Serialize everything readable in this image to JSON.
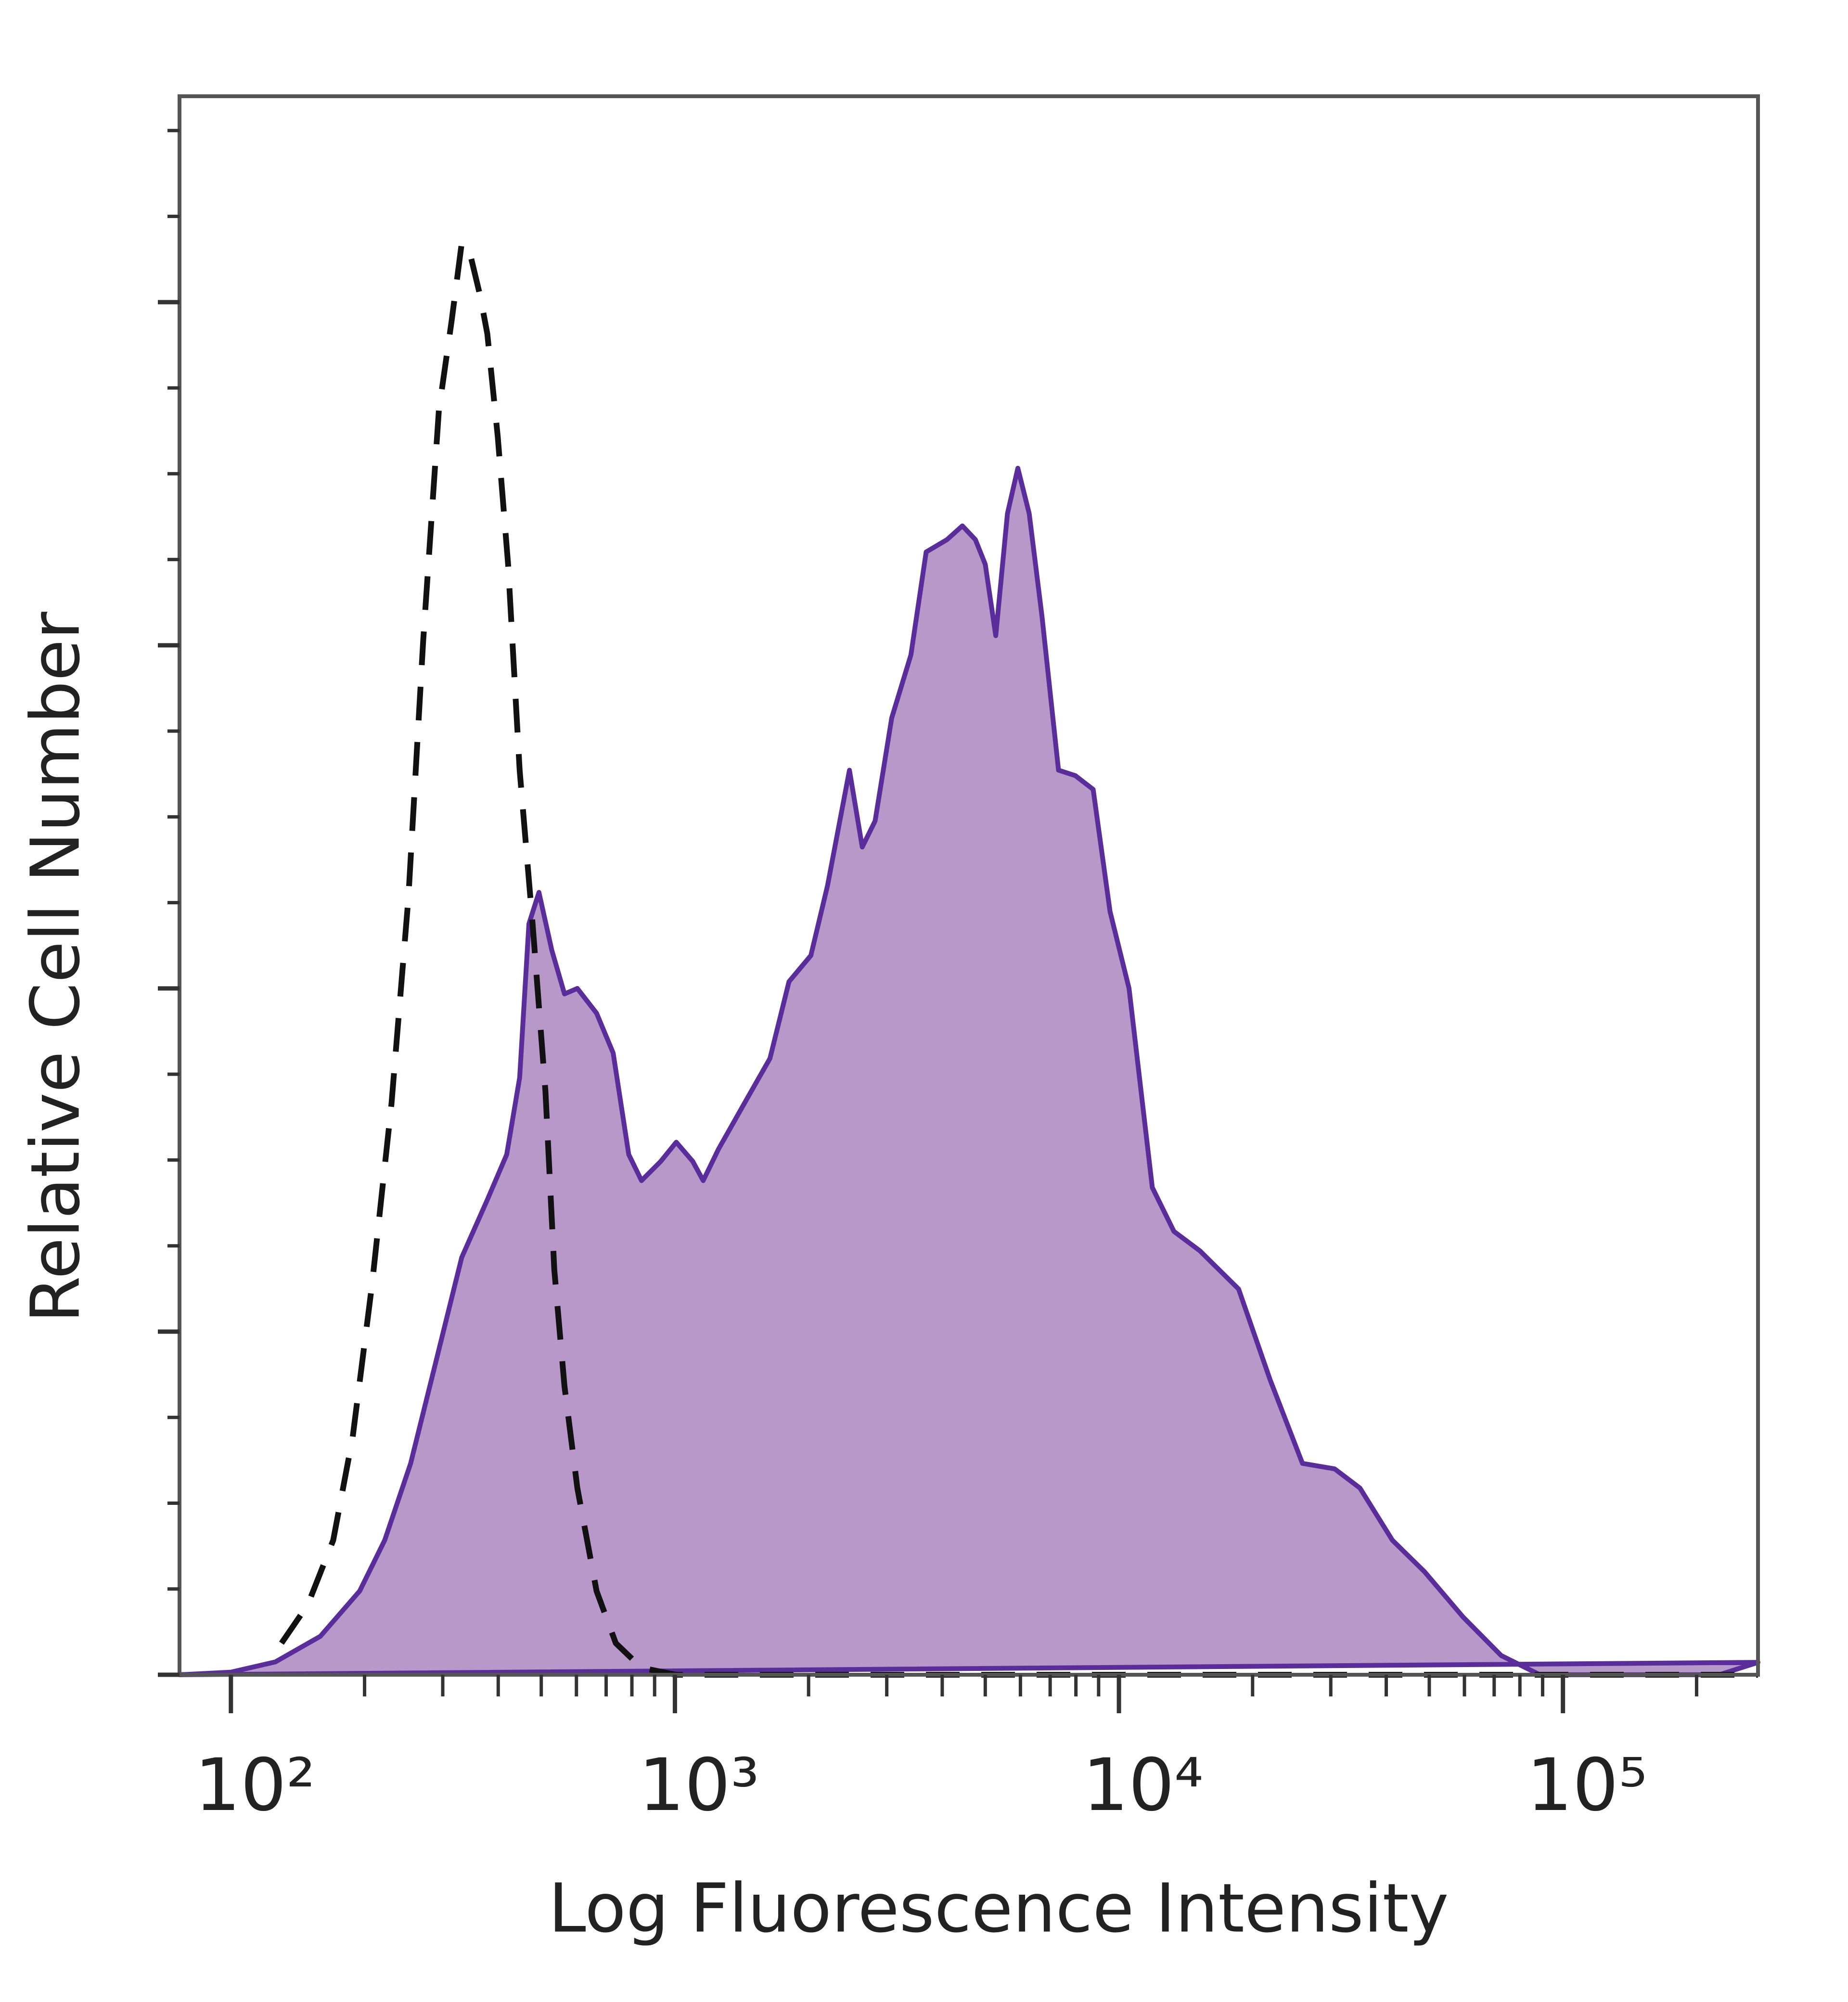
{
  "chart_data": {
    "type": "histogram-line",
    "x_label": "Log Fluorescence Intensity",
    "y_label": "Relative Cell Number",
    "xscale": "log",
    "xlim": [
      76.6,
      275000
    ],
    "xticks": [
      {
        "value": 100,
        "label": "10²"
      },
      {
        "value": 1000,
        "label": "10³"
      },
      {
        "value": 10000,
        "label": "10⁴"
      },
      {
        "value": 100000,
        "label": "10⁵"
      }
    ],
    "xminorticks": [
      200,
      300,
      400,
      500,
      600,
      700,
      800,
      900,
      2000,
      3000,
      4000,
      5000,
      6000,
      7000,
      8000,
      9000,
      20000,
      30000,
      40000,
      50000,
      60000,
      70000,
      80000,
      90000,
      200000
    ],
    "ylim": [
      0,
      115
    ],
    "yticks": [
      0,
      6.25,
      12.5,
      18.75,
      25,
      31.25,
      37.5,
      43.75,
      50,
      56.25,
      62.5,
      68.75,
      75,
      81.25,
      87.5,
      93.75,
      100,
      106.25,
      112.5
    ],
    "ymajor_every": 25,
    "series": [
      {
        "color": "#5b2d9b",
        "fill_color": "#b898c8",
        "fill": true,
        "dashed": false,
        "x": [
          76.6,
          100,
          126,
          159,
          195,
          222,
          254,
          290,
          331,
          378,
          418,
          447,
          469,
          494,
          528,
          564,
          603,
          666,
          726,
          787,
          841,
          929,
          1007,
          1097,
          1158,
          1254,
          1432,
          1637,
          1807,
          2024,
          2207,
          2472,
          2642,
          2824,
          3078,
          3400,
          3680,
          4100,
          4440,
          4750,
          5000,
          5280,
          5610,
          5920,
          6280,
          6710,
          7310,
          7980,
          8750,
          9550,
          10540,
          11890,
          13300,
          15200,
          18600,
          21900,
          25900,
          30600,
          34900,
          41300,
          48800,
          59600,
          72600,
          88700,
          151000,
          225000,
          275000
        ],
        "values": [
          0,
          0.19,
          0.94,
          2.8,
          6.1,
          9.8,
          15.4,
          22.9,
          30.4,
          34.6,
          37.9,
          43.5,
          54.7,
          57.0,
          52.8,
          49.6,
          50.0,
          48.2,
          45.3,
          37.9,
          36.0,
          37.4,
          38.8,
          37.4,
          36.0,
          38.3,
          41.6,
          44.9,
          50.5,
          52.4,
          57.5,
          65.9,
          60.3,
          62.2,
          69.7,
          74.3,
          81.8,
          82.7,
          83.7,
          82.7,
          80.9,
          75.7,
          84.6,
          87.9,
          84.6,
          77.1,
          65.9,
          65.5,
          64.5,
          55.6,
          50.0,
          35.5,
          32.3,
          30.9,
          28.1,
          21.5,
          15.4,
          15.0,
          13.6,
          9.8,
          7.5,
          4.2,
          1.4,
          0,
          0,
          0,
          0.9
        ]
      },
      {
        "color": "#111111",
        "fill": false,
        "dashed": true,
        "x": [
          130,
          149,
          170,
          188,
          208,
          230,
          251,
          271,
          294,
          314,
          331,
          347,
          364,
          378,
          399,
          421,
          447,
          478,
          511,
          535,
          564,
          603,
          666,
          736,
          841,
          1007,
          10070,
          275000
        ],
        "values": [
          2.3,
          5.1,
          9.8,
          17.3,
          28.5,
          41.6,
          56.6,
          75.3,
          92.1,
          98.6,
          104.3,
          103.3,
          100.5,
          97.7,
          90.2,
          80.9,
          65.9,
          54.7,
          42.5,
          29.5,
          21.0,
          13.6,
          6.1,
          2.3,
          0.5,
          0,
          0,
          0
        ]
      }
    ]
  }
}
